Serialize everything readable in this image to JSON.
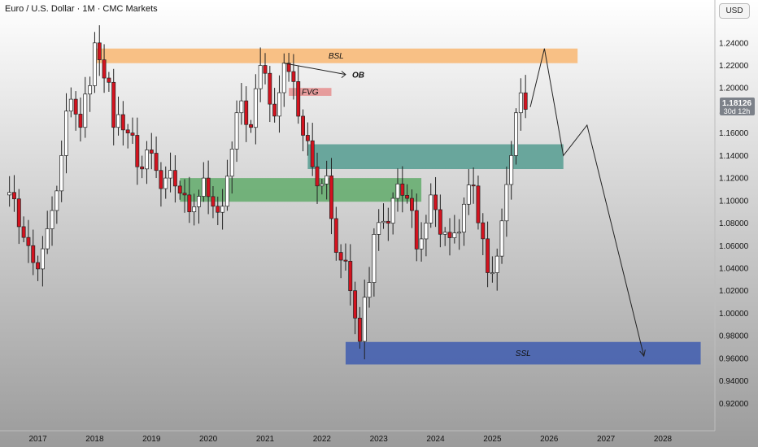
{
  "header": {
    "title": "Euro / U.S. Dollar · 1M · CMC Markets",
    "currency_button": "USD"
  },
  "price_tag": {
    "price": "1.18126",
    "countdown": "30d 12h",
    "color": "#7c8189"
  },
  "colors": {
    "up": "#ffffff",
    "down": "#d3131f",
    "wick": "#222222",
    "bsl": "#f9b46d",
    "fvg": "#e58b8b",
    "teal": "#4f9a8e",
    "green": "#5da967",
    "ssl": "#3b59b0",
    "background_top": "#ffffff",
    "background_bottom": "#9b9b9b"
  },
  "chart_data": {
    "type": "candlestick",
    "title": "Euro / U.S. Dollar · 1M · CMC Markets",
    "xlabel": "",
    "ylabel": "",
    "ylim": [
      0.9,
      1.255
    ],
    "xlim": [
      "2016-05",
      "2028-12"
    ],
    "y_ticks": [
      "1.24000",
      "1.22000",
      "1.20000",
      "1.18000",
      "1.16000",
      "1.14000",
      "1.12000",
      "1.10000",
      "1.08000",
      "1.06000",
      "1.04000",
      "1.02000",
      "1.00000",
      "0.98000",
      "0.96000",
      "0.94000",
      "0.92000"
    ],
    "x_ticks": [
      "2017",
      "2018",
      "2019",
      "2020",
      "2021",
      "2022",
      "2023",
      "2024",
      "2025",
      "2026",
      "2027",
      "2028"
    ],
    "grid": false,
    "anchors": [
      [
        "2016-06",
        1.105
      ],
      [
        "2016-11",
        1.06
      ],
      [
        "2016-12",
        1.045
      ],
      [
        "2017-03",
        1.075
      ],
      [
        "2017-06",
        1.14
      ],
      [
        "2017-08",
        1.19
      ],
      [
        "2017-10",
        1.165
      ],
      [
        "2018-01",
        1.24
      ],
      [
        "2018-02",
        1.225
      ],
      [
        "2018-04",
        1.205
      ],
      [
        "2018-05",
        1.165
      ],
      [
        "2018-08",
        1.16
      ],
      [
        "2018-10",
        1.13
      ],
      [
        "2018-12",
        1.145
      ],
      [
        "2019-04",
        1.12
      ],
      [
        "2019-08",
        1.105
      ],
      [
        "2019-09",
        1.09
      ],
      [
        "2019-12",
        1.12
      ],
      [
        "2020-02",
        1.095
      ],
      [
        "2020-04",
        1.095
      ],
      [
        "2020-07",
        1.178
      ],
      [
        "2020-10",
        1.165
      ],
      [
        "2020-12",
        1.22
      ],
      [
        "2021-01",
        1.213
      ],
      [
        "2021-03",
        1.175
      ],
      [
        "2021-05",
        1.222
      ],
      [
        "2021-09",
        1.158
      ],
      [
        "2021-11",
        1.13
      ],
      [
        "2022-02",
        1.122
      ],
      [
        "2022-04",
        1.054
      ],
      [
        "2022-07",
        1.02
      ],
      [
        "2022-09",
        0.975
      ],
      [
        "2022-12",
        1.07
      ],
      [
        "2023-04",
        1.102
      ],
      [
        "2023-07",
        1.102
      ],
      [
        "2023-09",
        1.057
      ],
      [
        "2023-12",
        1.105
      ],
      [
        "2024-04",
        1.067
      ],
      [
        "2024-06",
        1.072
      ],
      [
        "2024-09",
        1.113
      ],
      [
        "2024-12",
        1.036
      ],
      [
        "2025-01",
        1.036
      ],
      [
        "2025-03",
        1.082
      ],
      [
        "2025-06",
        1.178
      ],
      [
        "2025-08",
        1.181
      ]
    ],
    "zones": [
      {
        "label": "BSL",
        "x0": "2018-01",
        "x1": "2026-07",
        "y0": 1.222,
        "y1": 1.235,
        "color": "#f9b46d"
      },
      {
        "label": "FVG",
        "x0": "2021-06",
        "x1": "2022-03",
        "y0": 1.193,
        "y1": 1.2,
        "color": "#e58b8b"
      },
      {
        "label": "",
        "x0": "2021-10",
        "x1": "2026-04",
        "y0": 1.128,
        "y1": 1.15,
        "color": "#4f9a8e"
      },
      {
        "label": "",
        "x0": "2019-07",
        "x1": "2023-10",
        "y0": 1.099,
        "y1": 1.12,
        "color": "#5da967"
      },
      {
        "label": "SSL",
        "x0": "2022-06",
        "x1": "2028-09",
        "y0": 0.9545,
        "y1": 0.9745,
        "color": "#3b59b0"
      }
    ],
    "ob": {
      "label": "OB",
      "from": [
        "2021-05",
        1.222
      ],
      "to": [
        "2022-06",
        1.212
      ]
    },
    "projection": [
      [
        "2025-09",
        1.183
      ],
      [
        "2025-12",
        1.235
      ],
      [
        "2026-04",
        1.14
      ],
      [
        "2026-09",
        1.167
      ],
      [
        "2027-09",
        0.962
      ]
    ]
  }
}
